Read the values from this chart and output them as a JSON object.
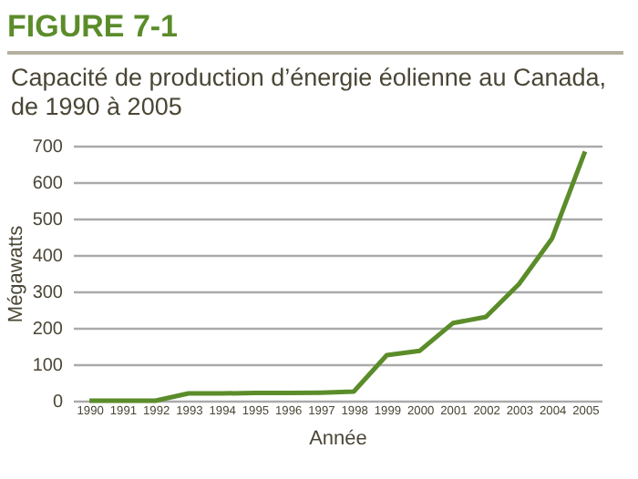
{
  "chart_data": {
    "type": "line",
    "title": "FIGURE 7-1",
    "subtitle": "Capacité de production d’énergie éolienne au Canada, de 1990 à 2005",
    "xlabel": "Année",
    "ylabel": "Mégawatts",
    "categories": [
      "1990",
      "1991",
      "1992",
      "1993",
      "1994",
      "1995",
      "1996",
      "1997",
      "1998",
      "1999",
      "2000",
      "2001",
      "2002",
      "2003",
      "2004",
      "2005"
    ],
    "series": [
      {
        "color": "#5b8c2a",
        "values": [
          0,
          0,
          0,
          20,
          20,
          21,
          21,
          22,
          25,
          125,
          137,
          213,
          230,
          320,
          445,
          684
        ]
      }
    ],
    "ylim": [
      0,
      700
    ],
    "yticks": [
      0,
      100,
      200,
      300,
      400,
      500,
      600,
      700
    ],
    "grid": "y",
    "legend": false,
    "marker": "none",
    "line_style": "solid"
  }
}
